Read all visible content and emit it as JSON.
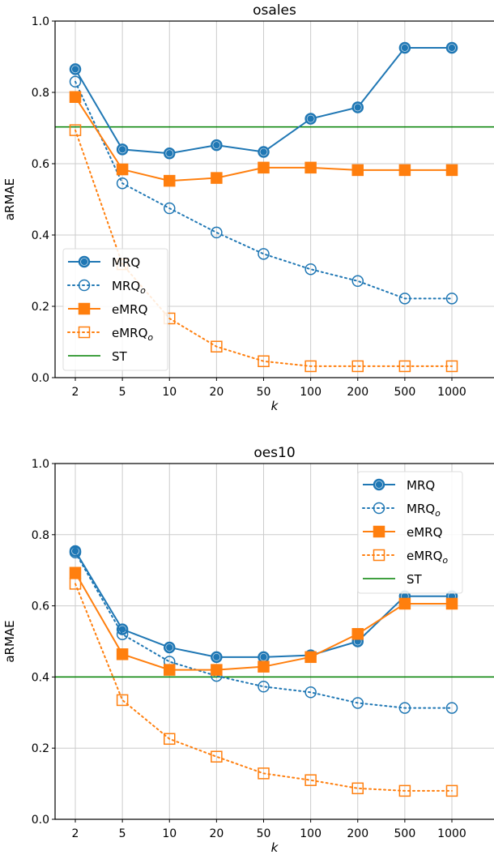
{
  "colors": {
    "blue": "#1f77b4",
    "orange": "#ff7f0e",
    "green": "#008000",
    "grid": "#cccccc"
  },
  "chart_data": [
    {
      "type": "line",
      "title": "osales",
      "xlabel": "k",
      "ylabel": "aRMAE",
      "categories": [
        "2",
        "5",
        "10",
        "20",
        "50",
        "100",
        "200",
        "500",
        "1000"
      ],
      "ylim": [
        0,
        1.0
      ],
      "yticks": [
        "0.0",
        "0.2",
        "0.4",
        "0.6",
        "0.8",
        "1.0"
      ],
      "grid": true,
      "legend_position": "lower-left",
      "series": [
        {
          "name": "MRQ",
          "sub": "",
          "color": "#1f77b4",
          "style": "solid",
          "marker": "filled-circle",
          "values": [
            0.865,
            0.64,
            0.629,
            0.652,
            0.633,
            0.726,
            0.758,
            0.925,
            0.925
          ]
        },
        {
          "name": "MRQ",
          "sub": "o",
          "color": "#1f77b4",
          "style": "dotted",
          "marker": "open-circle",
          "values": [
            0.83,
            0.545,
            0.475,
            0.407,
            0.347,
            0.304,
            0.271,
            0.222,
            0.222
          ]
        },
        {
          "name": "eMRQ",
          "sub": "",
          "color": "#ff7f0e",
          "style": "solid",
          "marker": "filled-square",
          "values": [
            0.787,
            0.584,
            0.552,
            0.56,
            0.589,
            0.589,
            0.582,
            0.582,
            0.582
          ]
        },
        {
          "name": "eMRQ",
          "sub": "o",
          "color": "#ff7f0e",
          "style": "dotted",
          "marker": "open-square",
          "values": [
            0.694,
            0.318,
            0.166,
            0.087,
            0.046,
            0.032,
            0.032,
            0.032,
            0.032
          ]
        }
      ],
      "hline": {
        "name": "ST",
        "color": "#008000",
        "value": 0.703
      }
    },
    {
      "type": "line",
      "title": "oes10",
      "xlabel": "k",
      "ylabel": "aRMAE",
      "categories": [
        "2",
        "5",
        "10",
        "20",
        "50",
        "100",
        "200",
        "500",
        "1000"
      ],
      "ylim": [
        0,
        1.0
      ],
      "yticks": [
        "0.0",
        "0.2",
        "0.4",
        "0.6",
        "0.8",
        "1.0"
      ],
      "grid": true,
      "legend_position": "upper-right",
      "series": [
        {
          "name": "MRQ",
          "sub": "",
          "color": "#1f77b4",
          "style": "solid",
          "marker": "filled-circle",
          "values": [
            0.754,
            0.534,
            0.483,
            0.456,
            0.456,
            0.461,
            0.5,
            0.627,
            0.627
          ]
        },
        {
          "name": "MRQ",
          "sub": "o",
          "color": "#1f77b4",
          "style": "dotted",
          "marker": "open-circle",
          "values": [
            0.75,
            0.52,
            0.443,
            0.403,
            0.373,
            0.357,
            0.327,
            0.313,
            0.313
          ]
        },
        {
          "name": "eMRQ",
          "sub": "",
          "color": "#ff7f0e",
          "style": "solid",
          "marker": "filled-square",
          "values": [
            0.693,
            0.464,
            0.42,
            0.42,
            0.429,
            0.456,
            0.521,
            0.606,
            0.606
          ]
        },
        {
          "name": "eMRQ",
          "sub": "o",
          "color": "#ff7f0e",
          "style": "dotted",
          "marker": "open-square",
          "values": [
            0.662,
            0.335,
            0.226,
            0.176,
            0.129,
            0.11,
            0.087,
            0.08,
            0.08
          ]
        }
      ],
      "hline": {
        "name": "ST",
        "color": "#008000",
        "value": 0.4
      }
    }
  ]
}
